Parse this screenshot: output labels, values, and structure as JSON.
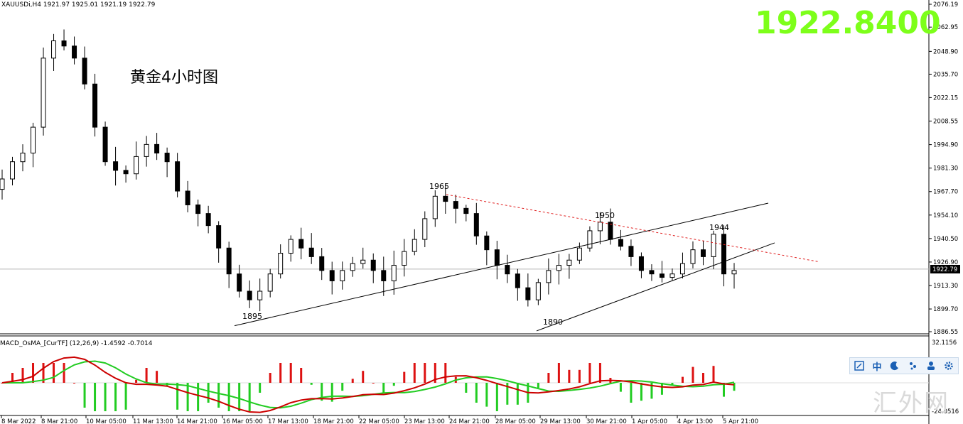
{
  "header": {
    "symbol_line": "XAUUSDi,H4  1921.97 1925.01 1921.19 1922.79",
    "big_price": "1922.8400",
    "chart_title": "黄金4小时图",
    "current_price_tag": "1922.79"
  },
  "indicator": {
    "label": "MACD_OsMA_[CurTF] (12,26,9) -1.4592 -0.7014",
    "axis_top": "32.1156",
    "axis_bottom": "-24.0516"
  },
  "toolbar": {
    "items": [
      "capture-icon",
      "中",
      "moon-icon",
      "dots-icon",
      "user-icon",
      "gear-icon"
    ]
  },
  "watermark": "汇外网",
  "chart_data": {
    "type": "candlestick",
    "symbol": "XAUUSDi",
    "timeframe": "H4",
    "ylim": [
      1886.56,
      2076.19
    ],
    "y_ticks": [
      "2076.19",
      "2062.95",
      "2048.90",
      "2035.70",
      "2022.15",
      "2008.55",
      "1994.90",
      "1981.30",
      "1967.70",
      "1954.10",
      "1940.50",
      "1926.90",
      "1913.30",
      "1899.70",
      "1886.55"
    ],
    "x_ticks": [
      "8 Mar 2022",
      "8 Mar 21:00",
      "10 Mar 05:00",
      "11 Mar 13:00",
      "14 Mar 21:00",
      "16 Mar 05:00",
      "17 Mar 13:00",
      "18 Mar 21:00",
      "22 Mar 05:00",
      "23 Mar 13:00",
      "24 Mar 21:00",
      "28 Mar 05:00",
      "29 Mar 13:00",
      "30 Mar 21:00",
      "1 Apr 05:00",
      "4 Apr 13:00",
      "5 Apr 21:00"
    ],
    "current_price": 1922.79,
    "annotations": [
      {
        "text": "1965",
        "price": 1965
      },
      {
        "text": "1950",
        "price": 1950
      },
      {
        "text": "1944",
        "price": 1944
      },
      {
        "text": "1895",
        "price": 1895
      },
      {
        "text": "1890",
        "price": 1890
      }
    ],
    "trendlines": [
      {
        "name": "lower channel support",
        "from": [
          1895,
          "16 Mar 05:00"
        ],
        "to": [
          1960,
          "5 Apr 21:00"
        ]
      },
      {
        "name": "rising wedge support",
        "from": [
          1890,
          "29 Mar 13:00"
        ],
        "to": [
          1937,
          "5 Apr 21:00"
        ]
      },
      {
        "name": "descending resistance (dashed)",
        "from": [
          1965,
          "24 Mar 13:00"
        ],
        "to": [
          1928,
          "5 Apr 21:00"
        ]
      }
    ],
    "close_path": [
      1975,
      1985,
      1990,
      2005,
      2045,
      2055,
      2052,
      2045,
      2030,
      2005,
      1985,
      1980,
      1978,
      1988,
      1995,
      1990,
      1985,
      1968,
      1960,
      1955,
      1948,
      1935,
      1920,
      1910,
      1905,
      1910,
      1920,
      1932,
      1940,
      1935,
      1930,
      1922,
      1916,
      1922,
      1926,
      1928,
      1922,
      1916,
      1925,
      1933,
      1940,
      1952,
      1965,
      1962,
      1958,
      1955,
      1942,
      1934,
      1925,
      1920,
      1912,
      1905,
      1915,
      1922,
      1925,
      1928,
      1935,
      1945,
      1950,
      1940,
      1936,
      1930,
      1922,
      1920,
      1918,
      1920,
      1926,
      1934,
      1930,
      1943,
      1920,
      1922
    ],
    "macd_histogram_note": "red = positive bars, green = negative bars",
    "macd_line_color": "#cc0000",
    "signal_line_color": "#22cc22"
  }
}
